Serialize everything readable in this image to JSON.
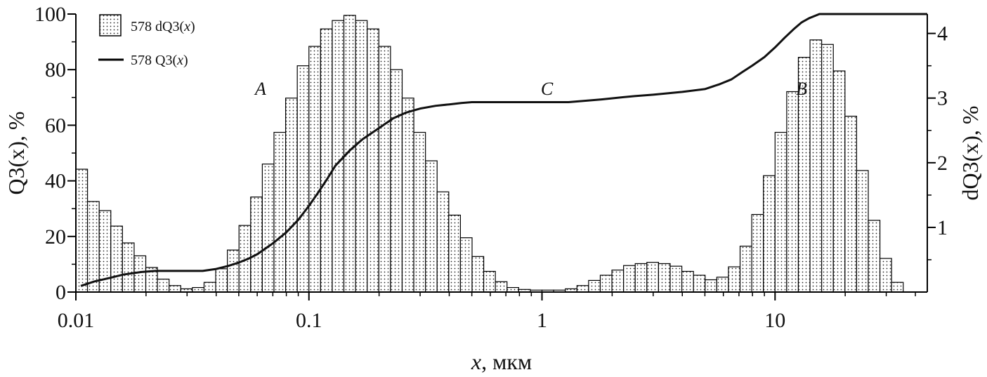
{
  "chart_data": {
    "type": "bar",
    "x_scale": "log",
    "xlabel_var": "x",
    "xlabel_unit": ", мкм",
    "ylabel_left_var": "Q3(x)",
    "ylabel_left_unit": ", %",
    "ylabel_right_var": "dQ3(x)",
    "ylabel_right_unit": ", %",
    "xlim": [
      0.01,
      45
    ],
    "ylim_left": [
      0,
      100
    ],
    "ylim_right": [
      0,
      4.3
    ],
    "x_ticks": [
      {
        "value": 0.01,
        "label": "0.01"
      },
      {
        "value": 0.1,
        "label": "0.1"
      },
      {
        "value": 1,
        "label": "1"
      },
      {
        "value": 10,
        "label": "10"
      }
    ],
    "y_left_ticks": [
      {
        "value": 0,
        "label": "0"
      },
      {
        "value": 20,
        "label": "20"
      },
      {
        "value": 40,
        "label": "40"
      },
      {
        "value": 60,
        "label": "60"
      },
      {
        "value": 80,
        "label": "80"
      },
      {
        "value": 100,
        "label": "100"
      }
    ],
    "y_right_ticks": [
      {
        "value": 1,
        "label": "1"
      },
      {
        "value": 2,
        "label": "2"
      },
      {
        "value": 3,
        "label": "3"
      },
      {
        "value": 4,
        "label": "4"
      }
    ],
    "legend": [
      {
        "name": "578 dQ3(x)",
        "prefix": "578 dQ3(",
        "var": "x",
        "suffix": ")",
        "kind": "bar"
      },
      {
        "name": "578 Q3(x)",
        "prefix": "578 Q3(",
        "var": "x",
        "suffix": ")",
        "kind": "line"
      }
    ],
    "annotations": [
      {
        "text": "A",
        "x": 0.062,
        "y": 71
      },
      {
        "text": "C",
        "x": 1.05,
        "y": 71
      },
      {
        "text": "B",
        "x": 13.0,
        "y": 71
      }
    ],
    "series": [
      {
        "name": "578 dQ3(x)",
        "axis": "right",
        "bin_edges_start": 0.01,
        "bins_per_decade": 20,
        "values": [
          1.9,
          1.4,
          1.26,
          1.02,
          0.76,
          0.56,
          0.38,
          0.2,
          0.1,
          0.05,
          0.07,
          0.15,
          0.36,
          0.65,
          1.03,
          1.47,
          1.98,
          2.47,
          3.0,
          3.5,
          3.8,
          4.07,
          4.2,
          4.28,
          4.2,
          4.07,
          3.8,
          3.44,
          3.0,
          2.47,
          2.03,
          1.55,
          1.19,
          0.84,
          0.55,
          0.32,
          0.16,
          0.07,
          0.04,
          0.03,
          0.03,
          0.03,
          0.05,
          0.1,
          0.18,
          0.26,
          0.34,
          0.41,
          0.44,
          0.46,
          0.44,
          0.4,
          0.32,
          0.26,
          0.19,
          0.23,
          0.39,
          0.71,
          1.2,
          1.8,
          2.47,
          3.1,
          3.63,
          3.9,
          3.83,
          3.42,
          2.72,
          1.88,
          1.11,
          0.52,
          0.15
        ]
      },
      {
        "name": "578 Q3(x)",
        "axis": "left",
        "x": [
          0.0105,
          0.012,
          0.014,
          0.016,
          0.019,
          0.022,
          0.026,
          0.03,
          0.035,
          0.04,
          0.045,
          0.05,
          0.055,
          0.06,
          0.07,
          0.08,
          0.09,
          0.1,
          0.11,
          0.12,
          0.13,
          0.15,
          0.17,
          0.2,
          0.23,
          0.26,
          0.3,
          0.35,
          0.4,
          0.45,
          0.5,
          0.6,
          0.8,
          1.0,
          1.3,
          1.8,
          2.5,
          3.0,
          4.0,
          5.0,
          5.8,
          6.5,
          7.2,
          8.0,
          9.0,
          10.0,
          11.0,
          12.0,
          13.0,
          14.0,
          15.5,
          17.0,
          20.0,
          45.0
        ],
        "y": [
          2.2,
          3.8,
          5.1,
          6.3,
          7.2,
          7.6,
          7.6,
          7.6,
          7.6,
          8.3,
          9.4,
          10.6,
          12.0,
          13.6,
          17.5,
          21.5,
          26.0,
          31.0,
          36.0,
          40.8,
          45.5,
          51.0,
          55.0,
          59.0,
          62.5,
          64.5,
          66.0,
          67.0,
          67.5,
          68.0,
          68.3,
          68.3,
          68.3,
          68.3,
          68.3,
          69.3,
          70.5,
          71.0,
          72.0,
          73.0,
          74.8,
          76.5,
          79.0,
          81.5,
          84.5,
          88.0,
          91.5,
          94.5,
          97.0,
          98.5,
          100.0,
          100.0,
          100.0,
          100.0
        ]
      }
    ]
  }
}
